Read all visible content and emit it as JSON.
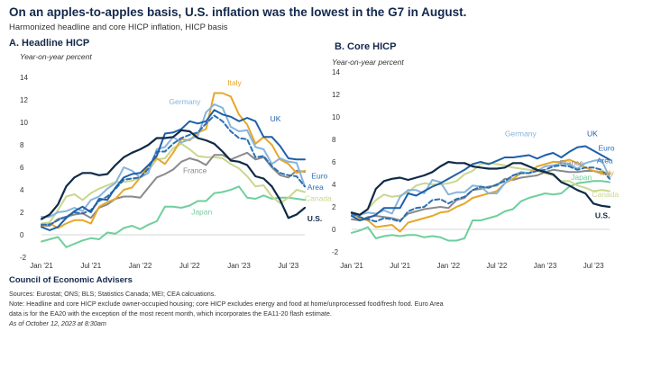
{
  "title": "On an apples-to-apples basis, U.S. inflation was the lowest in the G7 in August.",
  "subtitle": "Harmonized headline and core HICP inflation, HICP basis",
  "footer": {
    "org": "Council of Economic Advisers",
    "sources": "Sources: Eurostat; ONS; BLS; Statistics Canada; MEI; CEA calcuations.",
    "note_line1": "Note: Headline and core HICP exclude owner-occupied housing; core HICP excludes energy and food at home/unprocessed food/fresh food. Euro Area",
    "note_line2": "data is for the EA20 with the exception of the most recent month, which incorporates the EA11-20 flash estimate.",
    "date": "As of October 12, 2023 at 8:30am"
  },
  "colors": {
    "us": "#0f2a47",
    "uk": "#1f5fa8",
    "euro": "#2b6fb3",
    "germany": "#86b4dc",
    "italy": "#e6a72b",
    "france": "#8a8a8a",
    "canada": "#c9d78f",
    "japan": "#6fcf9c"
  },
  "chart_data": [
    {
      "type": "line",
      "title": "A. Headline HICP",
      "ylabel": "Year-on-year percent",
      "ylim": [
        -2,
        14
      ],
      "yticks": [
        "-2",
        "0",
        "2",
        "4",
        "6",
        "8",
        "10",
        "12",
        "14"
      ],
      "xticks": [
        {
          "label": "Jan '21",
          "x": 0
        },
        {
          "label": "Jul '21",
          "x": 6
        },
        {
          "label": "Jan '22",
          "x": 12
        },
        {
          "label": "Jul '22",
          "x": 18
        },
        {
          "label": "Jan '23",
          "x": 24
        },
        {
          "label": "Jul '23",
          "x": 30
        }
      ],
      "xlim": [
        0,
        32
      ],
      "series": [
        {
          "name": "U.S.",
          "key": "us",
          "dash": false,
          "width": 2.2,
          "values": [
            1.4,
            1.8,
            2.7,
            4.3,
            5.1,
            5.5,
            5.5,
            5.3,
            5.4,
            6.2,
            6.9,
            7.3,
            7.6,
            8.0,
            8.6,
            8.6,
            8.7,
            9.3,
            9.2,
            8.6,
            8.4,
            8.1,
            7.4,
            6.6,
            6.5,
            6.2,
            5.2,
            5.0,
            4.3,
            3.1,
            1.5,
            1.8,
            2.4
          ]
        },
        {
          "name": "UK",
          "key": "uk",
          "dash": false,
          "width": 2.0,
          "values": [
            0.7,
            0.4,
            0.7,
            1.5,
            2.1,
            2.5,
            2.0,
            3.2,
            3.1,
            4.2,
            5.1,
            5.4,
            5.5,
            6.2,
            7.0,
            9.0,
            9.1,
            9.4,
            10.1,
            9.9,
            10.1,
            11.1,
            10.7,
            10.5,
            10.1,
            10.4,
            10.1,
            8.7,
            8.7,
            7.9,
            6.8,
            6.7,
            6.7
          ]
        },
        {
          "name": "Euro Area",
          "key": "euro",
          "dash": true,
          "width": 2.0,
          "values": [
            0.9,
            0.9,
            1.3,
            1.6,
            2.0,
            1.9,
            2.2,
            3.0,
            3.4,
            4.1,
            4.9,
            5.0,
            5.1,
            5.9,
            7.4,
            7.4,
            8.1,
            8.6,
            8.9,
            9.1,
            9.9,
            10.6,
            10.1,
            9.2,
            8.6,
            8.5,
            6.9,
            7.0,
            6.1,
            5.5,
            5.3,
            5.2,
            4.3
          ]
        },
        {
          "name": "Germany",
          "key": "germany",
          "dash": false,
          "width": 2.0,
          "values": [
            1.6,
            1.6,
            2.0,
            2.1,
            2.4,
            2.1,
            3.1,
            3.4,
            4.1,
            4.6,
            6.0,
            5.7,
            5.1,
            5.5,
            7.6,
            7.8,
            8.7,
            8.2,
            8.5,
            8.8,
            10.9,
            11.6,
            11.3,
            9.6,
            9.2,
            9.3,
            7.8,
            7.6,
            6.3,
            6.8,
            6.5,
            6.4,
            4.3
          ]
        },
        {
          "name": "Italy",
          "key": "italy",
          "dash": false,
          "width": 2.0,
          "values": [
            0.7,
            1.0,
            0.6,
            1.0,
            1.3,
            1.3,
            1.0,
            2.5,
            2.9,
            3.2,
            4.0,
            4.2,
            5.1,
            6.2,
            6.8,
            6.3,
            7.3,
            8.5,
            8.4,
            9.1,
            9.4,
            12.6,
            12.6,
            12.3,
            10.7,
            9.8,
            8.1,
            8.7,
            8.0,
            6.7,
            6.3,
            5.5,
            5.7
          ]
        },
        {
          "name": "France",
          "key": "france",
          "dash": false,
          "width": 2.0,
          "values": [
            0.8,
            0.8,
            1.4,
            1.6,
            1.8,
            1.9,
            1.5,
            2.4,
            2.7,
            3.2,
            3.4,
            3.4,
            3.3,
            4.2,
            5.1,
            5.4,
            5.8,
            6.5,
            6.8,
            6.6,
            6.2,
            7.1,
            7.1,
            6.7,
            7.0,
            7.3,
            6.7,
            6.9,
            6.0,
            5.3,
            5.1,
            5.7,
            5.6
          ]
        },
        {
          "name": "Canada",
          "key": "canada",
          "dash": false,
          "width": 2.0,
          "values": [
            1.0,
            1.1,
            2.2,
            3.4,
            3.6,
            3.1,
            3.7,
            4.1,
            4.4,
            4.7,
            4.7,
            4.8,
            5.1,
            5.7,
            6.7,
            6.8,
            7.7,
            8.1,
            7.6,
            7.0,
            6.9,
            6.9,
            6.8,
            6.3,
            5.9,
            5.2,
            4.3,
            4.4,
            3.4,
            2.8,
            3.3,
            4.0,
            3.8
          ]
        },
        {
          "name": "Japan",
          "key": "japan",
          "dash": false,
          "width": 2.0,
          "values": [
            -0.6,
            -0.4,
            -0.2,
            -1.1,
            -0.8,
            -0.5,
            -0.3,
            -0.4,
            0.2,
            0.1,
            0.6,
            0.8,
            0.5,
            0.9,
            1.2,
            2.5,
            2.5,
            2.4,
            2.6,
            3.0,
            3.0,
            3.7,
            3.8,
            4.0,
            4.3,
            3.3,
            3.2,
            3.5,
            3.2,
            3.3,
            3.3,
            3.2,
            3.1
          ]
        }
      ]
    },
    {
      "type": "line",
      "title": "B. Core HICP",
      "ylabel": "Year-on-year percent",
      "ylim": [
        -2,
        14
      ],
      "yticks": [
        "-2",
        "0",
        "2",
        "4",
        "6",
        "8",
        "10",
        "12",
        "14"
      ],
      "xticks": [
        {
          "label": "Jan '21",
          "x": 0
        },
        {
          "label": "Jul '21",
          "x": 6
        },
        {
          "label": "Jan '22",
          "x": 12
        },
        {
          "label": "Jul '22",
          "x": 18
        },
        {
          "label": "Jan '23",
          "x": 24
        },
        {
          "label": "Jul '23",
          "x": 30
        }
      ],
      "xlim": [
        0,
        32
      ],
      "series": [
        {
          "name": "U.S.",
          "key": "us",
          "dash": false,
          "width": 2.2,
          "values": [
            1.5,
            1.3,
            1.8,
            3.6,
            4.3,
            4.5,
            4.6,
            4.4,
            4.6,
            4.8,
            5.1,
            5.6,
            6.0,
            5.9,
            5.9,
            5.6,
            5.5,
            5.4,
            5.4,
            5.5,
            5.9,
            5.9,
            5.6,
            5.3,
            5.1,
            4.9,
            4.2,
            3.9,
            3.5,
            3.2,
            2.3,
            2.1,
            2.0
          ]
        },
        {
          "name": "UK",
          "key": "uk",
          "dash": false,
          "width": 2.0,
          "values": [
            1.2,
            0.8,
            1.0,
            1.3,
            1.9,
            1.9,
            1.9,
            3.2,
            3.0,
            3.4,
            3.8,
            4.1,
            4.5,
            4.9,
            5.3,
            5.8,
            6.0,
            5.8,
            6.1,
            6.4,
            6.4,
            6.5,
            6.6,
            6.3,
            6.6,
            6.8,
            6.4,
            6.9,
            7.3,
            7.4,
            7.0,
            6.6,
            6.2
          ]
        },
        {
          "name": "Euro Area",
          "key": "euro",
          "dash": true,
          "width": 2.0,
          "values": [
            1.4,
            1.1,
            0.9,
            0.7,
            1.0,
            0.9,
            0.7,
            1.6,
            1.9,
            2.0,
            2.6,
            2.7,
            2.3,
            2.7,
            2.9,
            3.5,
            3.8,
            3.7,
            4.0,
            4.3,
            4.8,
            5.0,
            5.0,
            5.2,
            5.3,
            5.6,
            5.7,
            5.6,
            5.3,
            5.5,
            5.5,
            5.3,
            4.5
          ]
        },
        {
          "name": "Germany",
          "key": "germany",
          "dash": false,
          "width": 2.0,
          "values": [
            1.2,
            1.3,
            1.5,
            1.4,
            1.7,
            1.4,
            2.9,
            3.5,
            3.5,
            3.2,
            4.4,
            4.2,
            3.1,
            3.3,
            3.3,
            3.9,
            3.8,
            3.2,
            3.2,
            4.1,
            4.8,
            5.1,
            5.0,
            5.2,
            5.6,
            5.7,
            5.9,
            5.8,
            5.4,
            5.9,
            6.1,
            6.2,
            4.6
          ]
        },
        {
          "name": "Italy",
          "key": "italy",
          "dash": false,
          "width": 2.0,
          "values": [
            1.5,
            1.0,
            0.8,
            0.2,
            0.3,
            0.4,
            -0.2,
            0.6,
            0.8,
            1.0,
            1.2,
            1.5,
            1.6,
            2.0,
            2.3,
            2.8,
            3.0,
            3.2,
            3.4,
            4.1,
            4.5,
            5.0,
            5.0,
            5.6,
            5.8,
            6.0,
            6.0,
            6.2,
            5.9,
            5.5,
            5.2,
            5.1,
            5.0
          ]
        },
        {
          "name": "France",
          "key": "france",
          "dash": false,
          "width": 2.0,
          "values": [
            0.9,
            0.8,
            1.1,
            1.2,
            1.1,
            1.0,
            0.8,
            1.4,
            1.6,
            1.8,
            1.9,
            2.0,
            1.9,
            2.6,
            2.8,
            3.5,
            3.6,
            3.8,
            3.9,
            4.5,
            4.4,
            4.6,
            4.7,
            4.8,
            5.1,
            5.3,
            5.2,
            5.1,
            5.1,
            5.2,
            5.2,
            5.0,
            4.9
          ]
        },
        {
          "name": "Canada",
          "key": "canada",
          "dash": false,
          "width": 2.0,
          "values": [
            1.3,
            1.2,
            1.8,
            2.6,
            3.1,
            2.9,
            3.0,
            3.3,
            3.9,
            4.1,
            4.0,
            4.0,
            4.1,
            4.3,
            4.9,
            5.2,
            5.8,
            5.9,
            5.8,
            5.7,
            5.5,
            5.4,
            5.3,
            5.2,
            5.0,
            4.8,
            4.3,
            4.3,
            3.9,
            3.7,
            3.4,
            3.5,
            3.4
          ]
        },
        {
          "name": "Japan",
          "key": "japan",
          "dash": false,
          "width": 2.0,
          "values": [
            -0.3,
            -0.1,
            0.2,
            -0.8,
            -0.6,
            -0.5,
            -0.6,
            -0.5,
            -0.5,
            -0.7,
            -0.6,
            -0.7,
            -1.0,
            -1.0,
            -0.8,
            0.8,
            0.8,
            1.0,
            1.2,
            1.6,
            1.8,
            2.5,
            2.8,
            3.0,
            3.2,
            3.1,
            3.2,
            3.8,
            4.1,
            4.2,
            4.3,
            4.3,
            4.2
          ]
        }
      ]
    }
  ],
  "labels_a": [
    {
      "key": "germany",
      "text": "Germany",
      "x": 15.5,
      "y": 11.6
    },
    {
      "key": "italy",
      "text": "Italy",
      "x": 22.6,
      "y": 13.3
    },
    {
      "key": "uk",
      "text": "UK",
      "x": 27.8,
      "y": 10.1
    },
    {
      "key": "france",
      "text": "France",
      "x": 17.2,
      "y": 5.5
    },
    {
      "key": "euro",
      "text": "Euro",
      "x": 32.8,
      "y": 5.0
    },
    {
      "key": "euro",
      "text": "Area",
      "x": 32.3,
      "y": 4.0
    },
    {
      "key": "canada",
      "text": "Canada",
      "x": 32.0,
      "y": 3.0
    },
    {
      "key": "japan",
      "text": "Japan",
      "x": 18.2,
      "y": 1.8
    },
    {
      "key": "us",
      "text": "U.S.",
      "x": 32.3,
      "y": 1.2
    }
  ],
  "labels_b": [
    {
      "key": "germany",
      "text": "Germany",
      "x": 19.0,
      "y": 8.3
    },
    {
      "key": "uk",
      "text": "UK",
      "x": 29.2,
      "y": 8.3
    },
    {
      "key": "euro",
      "text": "Euro",
      "x": 30.6,
      "y": 7.0
    },
    {
      "key": "euro",
      "text": "Area",
      "x": 30.4,
      "y": 5.9
    },
    {
      "key": "france",
      "text": "France",
      "x": 25.8,
      "y": 5.7
    },
    {
      "key": "italy",
      "text": "Italy",
      "x": 30.8,
      "y": 4.8
    },
    {
      "key": "japan",
      "text": "Japan",
      "x": 27.2,
      "y": 4.4
    },
    {
      "key": "canada",
      "text": "Canada",
      "x": 29.8,
      "y": 2.9
    },
    {
      "key": "us",
      "text": "U.S.",
      "x": 30.2,
      "y": 1.0
    }
  ]
}
